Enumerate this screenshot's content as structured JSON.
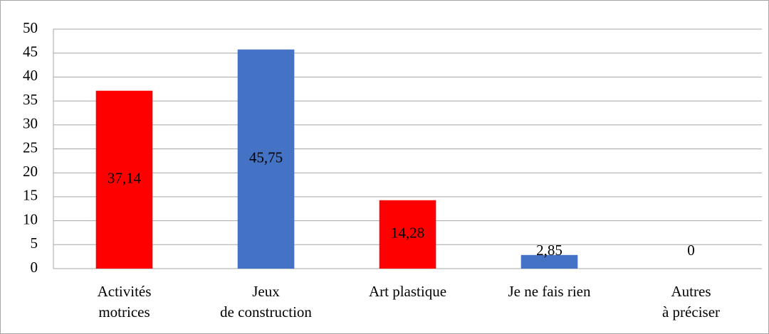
{
  "chart_data": {
    "type": "bar",
    "categories": [
      "Activités motrices",
      "Jeux de construction",
      "Art plastique",
      "Je ne fais rien",
      "Autres à préciser"
    ],
    "values": [
      37.14,
      45.75,
      14.28,
      2.85,
      0
    ],
    "value_labels": [
      "37,14",
      "45,75",
      "14,28",
      "2,85",
      "0"
    ],
    "colors": [
      "#ff0000",
      "#4472c4",
      "#ff0000",
      "#4472c4",
      "#4472c4"
    ],
    "ylim": [
      0,
      50
    ],
    "yticks": [
      0,
      5,
      10,
      15,
      20,
      25,
      30,
      35,
      40,
      45,
      50
    ],
    "grid": true
  }
}
